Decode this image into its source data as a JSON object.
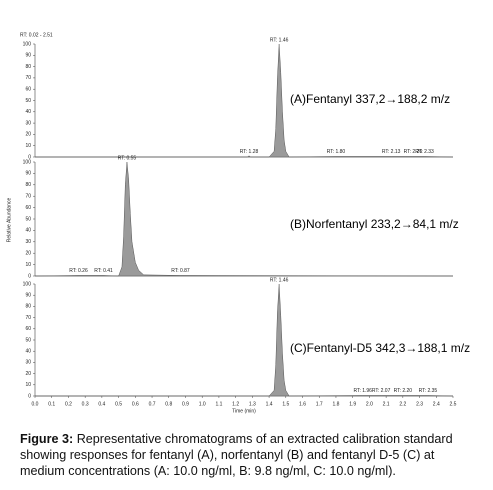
{
  "header": "RT: 0.02 - 2.51",
  "y_label": "Relative Abundance",
  "x_label": "Time (min)",
  "caption": {
    "label": "Figure 3:",
    "text": "Representative chromatograms of an extracted calibration standard showing responses for fentanyl (A), norfentanyl (B) and fentanyl D-5 (C) at medium concentrations (A: 10.0 ng/ml, B: 9.8 ng/ml, C: 10.0 ng/ml)."
  },
  "chart_data": [
    {
      "type": "line",
      "label": "(A)Fentanyl 337,2→188,2 m/z",
      "color": "#9a9a9a",
      "x": [
        0,
        1.27,
        1.28,
        1.29,
        1.4,
        1.43,
        1.44,
        1.45,
        1.46,
        1.47,
        1.48,
        1.49,
        1.5,
        1.52,
        1.8,
        2.13,
        2.26,
        2.33,
        2.5
      ],
      "values": [
        0,
        0,
        1,
        0,
        0,
        5,
        25,
        70,
        100,
        75,
        40,
        15,
        5,
        0,
        0.5,
        0.5,
        0.5,
        0.5,
        0
      ],
      "xlim": [
        0,
        2.5
      ],
      "ylim": [
        0,
        100
      ],
      "yticks": [
        0,
        10,
        20,
        30,
        40,
        50,
        60,
        70,
        80,
        90,
        100
      ],
      "annotations": [
        {
          "text": "RT: 1.46",
          "x": 1.46,
          "y": 100
        },
        {
          "text": "RT: 1.28",
          "x": 1.28,
          "y": 1
        },
        {
          "text": "RT: 1.80",
          "x": 1.8,
          "y": 1
        },
        {
          "text": "RT: 2.13",
          "x": 2.13,
          "y": 1
        },
        {
          "text": "RT: 2.26",
          "x": 2.26,
          "y": 1
        },
        {
          "text": "RT: 2.33",
          "x": 2.33,
          "y": 1
        }
      ]
    },
    {
      "type": "line",
      "label": "(B)Norfentanyl 233,2→84,1 m/z",
      "color": "#9a9a9a",
      "x": [
        0,
        0.26,
        0.41,
        0.5,
        0.52,
        0.53,
        0.54,
        0.55,
        0.56,
        0.57,
        0.58,
        0.6,
        0.62,
        0.65,
        0.87,
        2.5
      ],
      "values": [
        0,
        0.5,
        0.5,
        0,
        8,
        35,
        80,
        100,
        85,
        55,
        30,
        12,
        5,
        1,
        0.5,
        0
      ],
      "xlim": [
        0,
        2.5
      ],
      "ylim": [
        0,
        100
      ],
      "yticks": [
        0,
        10,
        20,
        30,
        40,
        50,
        60,
        70,
        80,
        90,
        100
      ],
      "annotations": [
        {
          "text": "RT: 0.55",
          "x": 0.55,
          "y": 100
        },
        {
          "text": "RT: 0.26",
          "x": 0.26,
          "y": 1
        },
        {
          "text": "RT: 0.41",
          "x": 0.41,
          "y": 1
        },
        {
          "text": "RT: 0.87",
          "x": 0.87,
          "y": 1
        }
      ]
    },
    {
      "type": "line",
      "label": "(C)Fentanyl-D5 342,3→188,1 m/z",
      "color": "#9a9a9a",
      "x": [
        0,
        1.4,
        1.43,
        1.44,
        1.45,
        1.46,
        1.47,
        1.48,
        1.49,
        1.5,
        1.52,
        1.96,
        2.07,
        2.2,
        2.35,
        2.5
      ],
      "values": [
        0,
        0,
        5,
        28,
        75,
        100,
        72,
        38,
        14,
        5,
        0,
        0.5,
        0.5,
        0.5,
        0.5,
        0
      ],
      "xlim": [
        0,
        2.5
      ],
      "ylim": [
        0,
        100
      ],
      "yticks": [
        0,
        10,
        20,
        30,
        40,
        50,
        60,
        70,
        80,
        90,
        100
      ],
      "xticks": [
        {
          "value": 0,
          "label": "0.0"
        },
        0.1,
        0.2,
        0.3,
        0.4,
        0.5,
        0.6,
        0.7,
        0.8,
        0.9,
        {
          "value": 1,
          "label": "1.0"
        },
        1.1,
        1.2,
        1.3,
        1.4,
        1.5,
        1.6,
        1.7,
        1.8,
        1.9,
        {
          "value": 2,
          "label": "2.0"
        },
        2.1,
        2.2,
        2.3,
        2.4,
        2.5
      ],
      "annotations": [
        {
          "text": "RT: 1.46",
          "x": 1.46,
          "y": 100
        },
        {
          "text": "RT: 1.96",
          "x": 1.96,
          "y": 1
        },
        {
          "text": "RT: 2.07",
          "x": 2.07,
          "y": 1
        },
        {
          "text": "RT: 2.20",
          "x": 2.2,
          "y": 1
        },
        {
          "text": "RT: 2.35",
          "x": 2.35,
          "y": 1
        }
      ]
    }
  ]
}
